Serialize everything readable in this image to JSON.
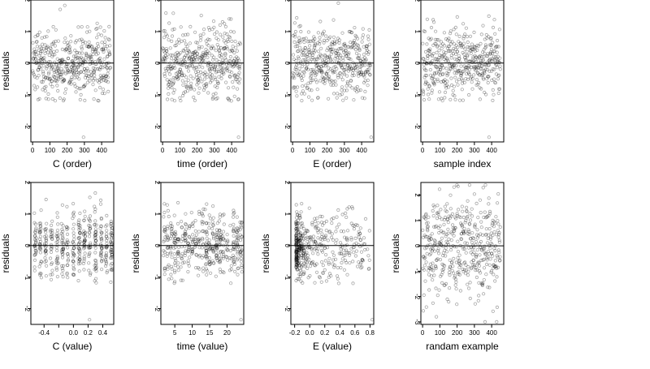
{
  "chart_data": [
    {
      "type": "scatter",
      "ylabel": "residuals",
      "xlabel": "C (order)",
      "xlim": [
        -10,
        470
      ],
      "ylim": [
        -2.5,
        2.0
      ],
      "xticks": [
        0,
        100,
        200,
        300,
        400
      ],
      "xtick_labels": [
        "0",
        "100",
        "200",
        "300",
        "400"
      ],
      "yticks": [
        -2,
        -1,
        0,
        1,
        2
      ],
      "ytick_labels": [
        "-2",
        "-1",
        "0",
        "1",
        "2"
      ],
      "hline": 0,
      "series": [
        {
          "x_spec": {
            "gen": "order",
            "n": 450,
            "seed": 11
          },
          "y_spec": {
            "gen": "resid",
            "seed": 11,
            "outliers": [
              [
                295,
                -2.35
              ]
            ]
          }
        }
      ]
    },
    {
      "type": "scatter",
      "ylabel": "residuals",
      "xlabel": "time (order)",
      "xlim": [
        -10,
        470
      ],
      "ylim": [
        -2.5,
        2.0
      ],
      "xticks": [
        0,
        100,
        200,
        300,
        400
      ],
      "xtick_labels": [
        "0",
        "100",
        "200",
        "300",
        "400"
      ],
      "yticks": [
        -2,
        -1,
        0,
        1,
        2
      ],
      "ytick_labels": [
        "-2",
        "-1",
        "0",
        "1",
        "2"
      ],
      "hline": 0,
      "series": [
        {
          "x_spec": {
            "gen": "order",
            "n": 450,
            "seed": 23
          },
          "y_spec": {
            "gen": "resid",
            "seed": 23,
            "outliers": [
              [
                440,
                -2.35
              ]
            ]
          }
        }
      ]
    },
    {
      "type": "scatter",
      "ylabel": "residuals",
      "xlabel": "E (order)",
      "xlim": [
        -10,
        470
      ],
      "ylim": [
        -2.5,
        2.0
      ],
      "xticks": [
        0,
        100,
        200,
        300,
        400
      ],
      "xtick_labels": [
        "0",
        "100",
        "200",
        "300",
        "400"
      ],
      "yticks": [
        -2,
        -1,
        0,
        1,
        2
      ],
      "ytick_labels": [
        "-2",
        "-1",
        "0",
        "1",
        "2"
      ],
      "hline": 0,
      "series": [
        {
          "x_spec": {
            "gen": "order",
            "n": 450,
            "seed": 37
          },
          "y_spec": {
            "gen": "resid",
            "seed": 37,
            "outliers": [
              [
                455,
                -2.35
              ]
            ]
          }
        }
      ]
    },
    {
      "type": "scatter",
      "ylabel": "residuals",
      "xlabel": "sample index",
      "xlim": [
        -10,
        470
      ],
      "ylim": [
        -2.5,
        2.0
      ],
      "xticks": [
        0,
        100,
        200,
        300,
        400
      ],
      "xtick_labels": [
        "0",
        "100",
        "200",
        "300",
        "400"
      ],
      "yticks": [
        -2,
        -1,
        0,
        1,
        2
      ],
      "ytick_labels": [
        "-2",
        "-1",
        "0",
        "1",
        "2"
      ],
      "hline": 0,
      "series": [
        {
          "x_spec": {
            "gen": "order",
            "n": 450,
            "seed": 41
          },
          "y_spec": {
            "gen": "resid",
            "seed": 41,
            "outliers": [
              [
                385,
                -2.35
              ]
            ]
          }
        }
      ]
    },
    {
      "type": "scatter",
      "ylabel": "residuals",
      "xlabel": "C (value)",
      "xlim": [
        -0.58,
        0.55
      ],
      "ylim": [
        -2.5,
        2.0
      ],
      "xticks": [
        -0.4,
        -0.2,
        0.0,
        0.2,
        0.4
      ],
      "xtick_labels": [
        "-0.4",
        "",
        "0.0",
        "0.2",
        "0.4"
      ],
      "yticks": [
        -2,
        -1,
        0,
        1,
        2
      ],
      "ytick_labels": [
        "-2",
        "-1",
        "0",
        "1",
        "2"
      ],
      "hline": 0,
      "series": [
        {
          "x_spec": {
            "gen": "levels",
            "n": 450,
            "seed": 53,
            "levels": [
              -0.52,
              -0.45,
              -0.38,
              -0.3,
              -0.22,
              -0.15,
              -0.08,
              0.0,
              0.08,
              0.15,
              0.22,
              0.3,
              0.38,
              0.45,
              0.52
            ]
          },
          "y_spec": {
            "gen": "resid",
            "seed": 53,
            "outliers": [
              [
                0.22,
                -2.35
              ]
            ]
          }
        }
      ]
    },
    {
      "type": "scatter",
      "ylabel": "residuals",
      "xlabel": "time (value)",
      "xlim": [
        1,
        24.8
      ],
      "ylim": [
        -2.5,
        2.0
      ],
      "xticks": [
        5,
        10,
        15,
        20
      ],
      "xtick_labels": [
        "5",
        "10",
        "15",
        "20"
      ],
      "yticks": [
        -2,
        -1,
        0,
        1,
        2
      ],
      "ytick_labels": [
        "-2",
        "-1",
        "0",
        "1",
        "2"
      ],
      "hline": 0,
      "series": [
        {
          "x_spec": {
            "gen": "levels",
            "n": 450,
            "seed": 67,
            "levels": [
              2,
              3,
              4,
              5,
              6,
              7,
              8,
              9,
              10,
              11,
              12,
              13,
              14,
              15,
              16,
              17,
              18,
              19,
              20,
              21,
              22,
              23,
              24
            ]
          },
          "y_spec": {
            "gen": "resid",
            "seed": 67,
            "outliers": [
              [
                24,
                -2.35
              ]
            ]
          }
        }
      ]
    },
    {
      "type": "scatter",
      "ylabel": "residuals",
      "xlabel": "E (value)",
      "xlim": [
        -0.25,
        0.85
      ],
      "ylim": [
        -2.5,
        2.0
      ],
      "xticks": [
        -0.2,
        0.0,
        0.2,
        0.4,
        0.6,
        0.8
      ],
      "xtick_labels": [
        "-0.2",
        "0.0",
        "0.2",
        "0.4",
        "0.6",
        "0.8"
      ],
      "yticks": [
        -2,
        -1,
        0,
        1,
        2
      ],
      "ytick_labels": [
        "-2",
        "-1",
        "0",
        "1",
        "2"
      ],
      "hline": 0,
      "series": [
        {
          "x_spec": {
            "gen": "skew",
            "n": 450,
            "seed": 79,
            "min": -0.18,
            "max": 0.8
          },
          "y_spec": {
            "gen": "resid",
            "seed": 79,
            "outliers": [
              [
                0.83,
                -2.35
              ]
            ]
          }
        }
      ]
    },
    {
      "type": "scatter",
      "ylabel": "residuals",
      "xlabel": "randam example",
      "xlim": [
        -10,
        470
      ],
      "ylim": [
        -3.1,
        2.5
      ],
      "xticks": [
        0,
        100,
        200,
        300,
        400
      ],
      "xtick_labels": [
        "0",
        "100",
        "200",
        "300",
        "400"
      ],
      "yticks": [
        -3,
        -2,
        -1,
        0,
        1,
        2
      ],
      "ytick_labels": [
        "-3",
        "-2",
        "-1",
        "0",
        "1",
        "2"
      ],
      "hline": 0,
      "series": [
        {
          "x_spec": {
            "gen": "order",
            "n": 450,
            "seed": 97
          },
          "y_spec": {
            "gen": "normal",
            "seed": 97,
            "sd": 1.0
          }
        }
      ]
    }
  ]
}
